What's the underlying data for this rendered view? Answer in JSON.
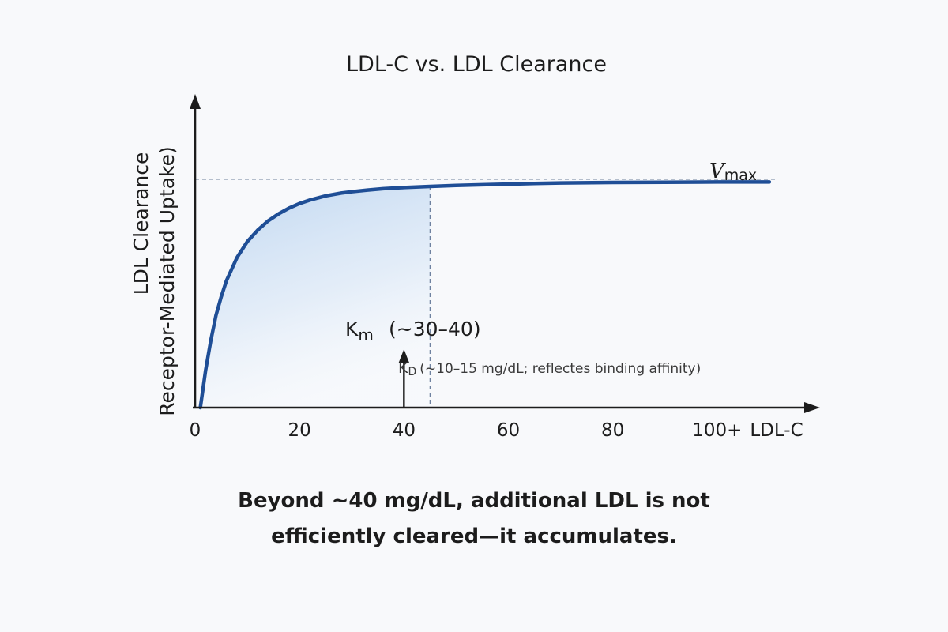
{
  "chart_data": {
    "type": "line",
    "title": "LDL-C vs. LDL Clearance",
    "ylabel_line1": "LDL Clearance",
    "ylabel_line2": "Receptor-Mediated Uptake)",
    "xlabel": "LDL-C",
    "x_ticks": [
      {
        "value": 0,
        "label": "0"
      },
      {
        "value": 20,
        "label": "20"
      },
      {
        "value": 40,
        "label": "40"
      },
      {
        "value": 60,
        "label": "60"
      },
      {
        "value": 80,
        "label": "80"
      },
      {
        "value": 100,
        "label": "100+"
      }
    ],
    "xlim": [
      0,
      120
    ],
    "ylim": [
      0,
      1.0
    ],
    "series": [
      {
        "color": "#1f4e96",
        "x": [
          1,
          2,
          3,
          4,
          5,
          6,
          8,
          10,
          12,
          14,
          16,
          18,
          20,
          22,
          25,
          28,
          30,
          33,
          36,
          40,
          45,
          50,
          55,
          60,
          65,
          70,
          80,
          90,
          100,
          110
        ],
        "y": [
          0.0,
          0.16,
          0.29,
          0.4,
          0.48,
          0.55,
          0.65,
          0.72,
          0.77,
          0.81,
          0.84,
          0.865,
          0.885,
          0.9,
          0.918,
          0.93,
          0.936,
          0.943,
          0.949,
          0.954,
          0.959,
          0.963,
          0.966,
          0.969,
          0.972,
          0.974,
          0.976,
          0.977,
          0.978,
          0.978
        ]
      }
    ],
    "vmax": {
      "label": "V",
      "sub": "max",
      "value": 0.99
    },
    "km_line": {
      "x": 45
    },
    "km_arrow": {
      "x": 40
    },
    "km_annotation": {
      "label": "K",
      "sub": "m",
      "range": "(~30–40)"
    },
    "kd_annotation": {
      "label": "K",
      "sub": "D",
      "text": "(~10–15 mg/dL; reflectes binding affinity)"
    },
    "colors": {
      "curve": "#1f4e96",
      "fill": "#c7dcf2",
      "axis": "#1c1c1c",
      "guide": "#8c9bb0"
    }
  },
  "caption": {
    "line1": "Beyond ~40 mg/dL, additional LDL is not",
    "line2_prefix": "efficiently cleared—",
    "line2_bold": "it accumulates."
  }
}
